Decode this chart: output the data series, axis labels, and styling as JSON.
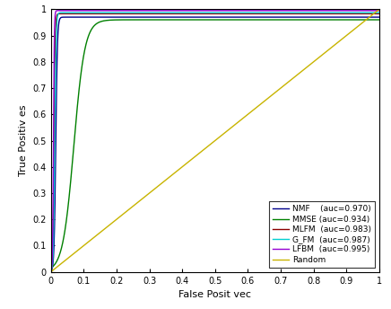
{
  "xlabel": "False Posit vec",
  "ylabel": "True Positiv es",
  "xlim": [
    0,
    1
  ],
  "ylim": [
    0,
    1
  ],
  "xticks": [
    0,
    0.1,
    0.2,
    0.3,
    0.4,
    0.5,
    0.6,
    0.7,
    0.8,
    0.9,
    1
  ],
  "yticks": [
    0,
    0.1,
    0.2,
    0.3,
    0.4,
    0.5,
    0.6,
    0.7,
    0.8,
    0.9,
    1
  ],
  "curves": [
    {
      "label": "NMF    (auc=0.970)",
      "color": "#00008B",
      "shape": "nmf",
      "lw": 1.0
    },
    {
      "label": "MMSE (auc=0.934)",
      "color": "#008000",
      "shape": "mmse",
      "lw": 1.0
    },
    {
      "label": "MLFM  (auc=0.983)",
      "color": "#8B0000",
      "shape": "mlfm",
      "lw": 1.0
    },
    {
      "label": "G_FM  (auc=0.987)",
      "color": "#00CED1",
      "shape": "glfm",
      "lw": 1.0
    },
    {
      "label": "LFBM  (auc=0.995)",
      "color": "#9400D3",
      "shape": "lfbm",
      "lw": 1.0
    }
  ],
  "random_color": "#C8B400",
  "random_label": "Random",
  "legend_loc": "lower right",
  "background_color": "#ffffff",
  "tick_fontsize": 7,
  "label_fontsize": 8,
  "figsize": [
    4.36,
    3.44
  ],
  "dpi": 100
}
